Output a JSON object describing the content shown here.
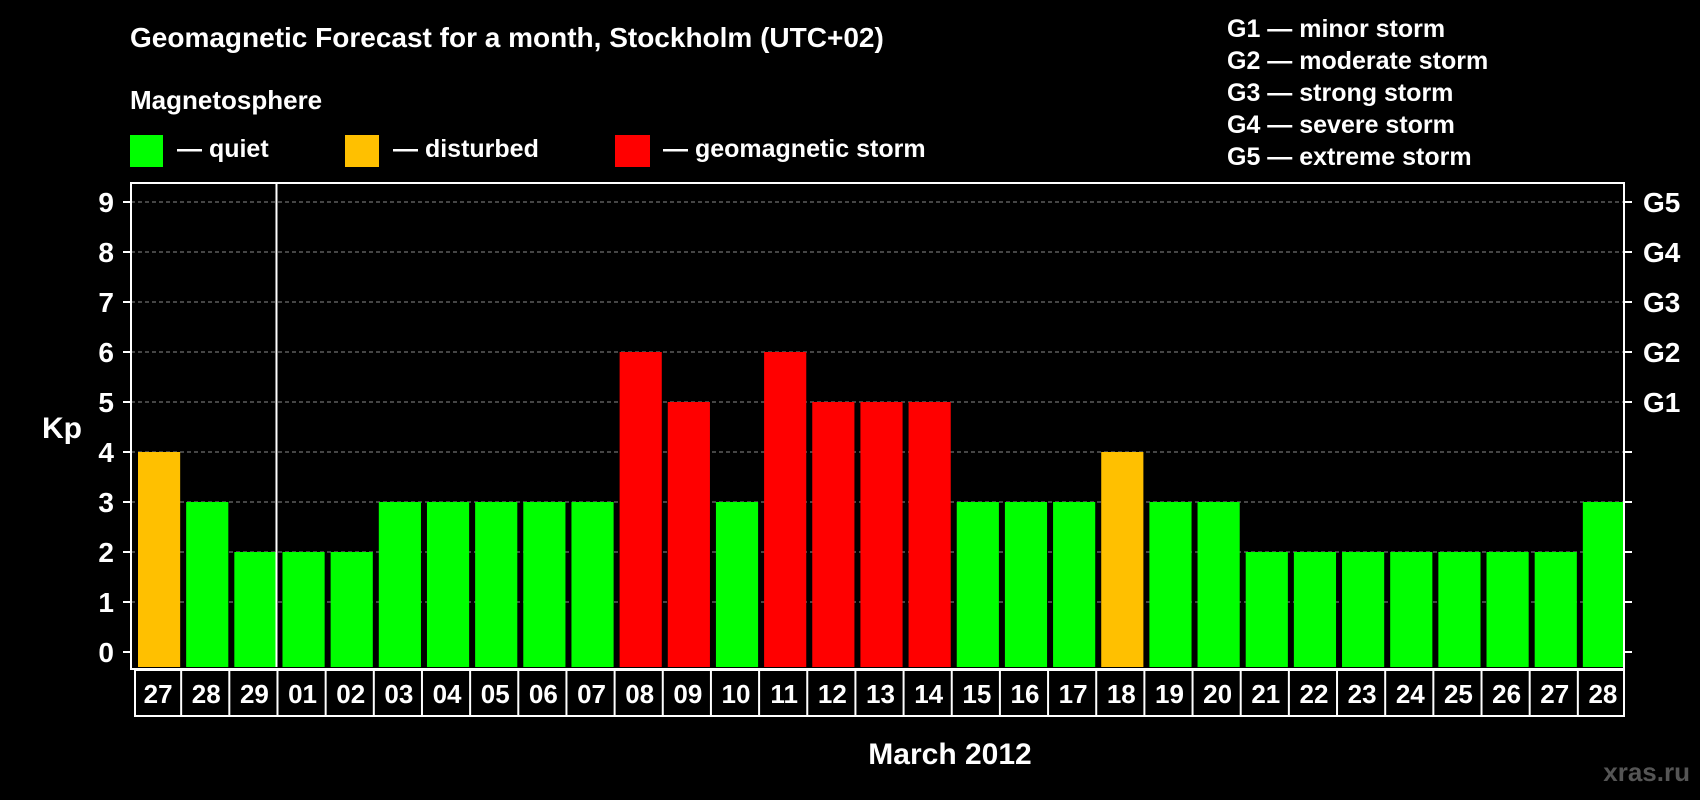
{
  "chart_data": {
    "type": "bar",
    "title": "Geomagnetic Forecast for a month, Stockholm (UTC+02)",
    "legend": {
      "heading": "Magnetosphere",
      "items": [
        {
          "key": "quiet",
          "label": "— quiet",
          "color": "#00ff00"
        },
        {
          "key": "disturbed",
          "label": "— disturbed",
          "color": "#ffc000"
        },
        {
          "key": "storm",
          "label": "— geomagnetic storm",
          "color": "#ff0000"
        }
      ]
    },
    "storm_scale": [
      "G1 — minor storm",
      "G2 — moderate storm",
      "G3 — strong storm",
      "G4 — severe storm",
      "G5 — extreme storm"
    ],
    "ylabel": "Kp",
    "xlabel": "March 2012",
    "ylim": [
      0,
      9
    ],
    "yticks": [
      "0",
      "1",
      "2",
      "3",
      "4",
      "5",
      "6",
      "7",
      "8",
      "9"
    ],
    "right_axis_labels": [
      {
        "kp": 5,
        "label": "G1"
      },
      {
        "kp": 6,
        "label": "G2"
      },
      {
        "kp": 7,
        "label": "G3"
      },
      {
        "kp": 8,
        "label": "G4"
      },
      {
        "kp": 9,
        "label": "G5"
      }
    ],
    "categories": [
      "27",
      "28",
      "29",
      "01",
      "02",
      "03",
      "04",
      "05",
      "06",
      "07",
      "08",
      "09",
      "10",
      "11",
      "12",
      "13",
      "14",
      "15",
      "16",
      "17",
      "18",
      "19",
      "20",
      "21",
      "22",
      "23",
      "24",
      "25",
      "26",
      "27",
      "28"
    ],
    "values": [
      4,
      3,
      2,
      2,
      2,
      3,
      3,
      3,
      3,
      3,
      6,
      5,
      3,
      6,
      5,
      5,
      5,
      3,
      3,
      3,
      4,
      3,
      3,
      2,
      2,
      2,
      2,
      2,
      2,
      2,
      3
    ],
    "month_divider_after_index": 2,
    "grid": true
  },
  "watermark": "xras.ru"
}
